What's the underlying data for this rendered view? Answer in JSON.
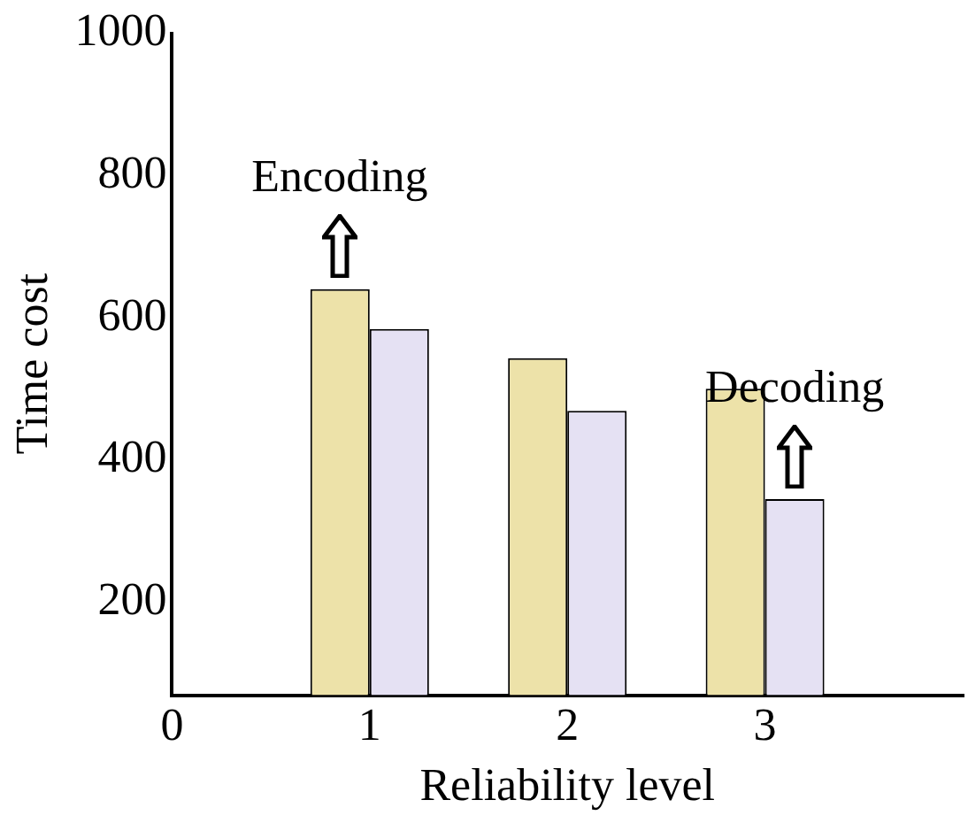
{
  "chart_data": {
    "type": "bar",
    "xlabel": "Reliability level",
    "ylabel": "Time cost",
    "categories": [
      "0",
      "1",
      "2",
      "3",
      null
    ],
    "series": [
      {
        "color": "#ede2a9",
        "values": [
          null,
          640,
          543,
          500,
          null
        ]
      },
      {
        "color": "#e5e1f3",
        "values": [
          null,
          584,
          469,
          345,
          null
        ]
      }
    ],
    "ylim": [
      70,
      1000
    ],
    "yticks": [
      200,
      400,
      600,
      800,
      1000
    ],
    "grid": false,
    "legend": false,
    "annotations": [
      {
        "text": "Encoding",
        "x": "1",
        "y": 640
      },
      {
        "text": "Decoding",
        "x": "3",
        "y": 345
      }
    ]
  }
}
